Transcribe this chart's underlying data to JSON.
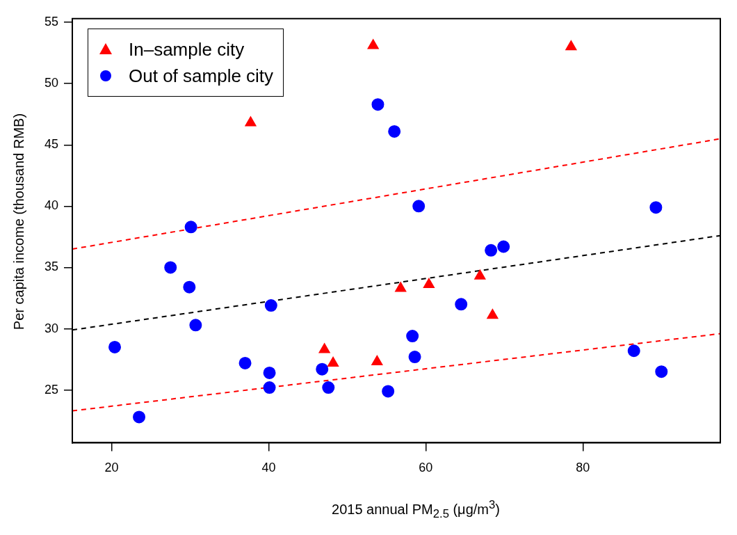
{
  "chart_data": {
    "type": "scatter",
    "xlabel": "2015 annual PM$_{2.5}$ (μg/m$^{3}$)",
    "ylabel": "Per capita income (thousand RMB)",
    "xlim": [
      15,
      97.5
    ],
    "ylim": [
      20.7,
      55.3
    ],
    "xticks": [
      20,
      40,
      60,
      80
    ],
    "yticks": [
      25,
      30,
      35,
      40,
      45,
      50,
      55
    ],
    "grid": false,
    "legend": "top left",
    "series": [
      {
        "name": "In–sample city",
        "color": "#ff0000",
        "marker": "triangle",
        "x": [
          37.7,
          53.3,
          78.5,
          47.1,
          48.2,
          53.8,
          56.8,
          60.4,
          66.9,
          68.5
        ],
        "values": [
          46.8,
          53.1,
          53.0,
          28.3,
          27.2,
          27.3,
          33.3,
          33.6,
          34.3,
          31.1
        ]
      },
      {
        "name": "Out of sample city",
        "color": "#0000ff",
        "marker": "circle",
        "x": [
          53.9,
          56.0,
          59.1,
          89.3,
          30.1,
          27.5,
          29.9,
          40.3,
          30.7,
          20.4,
          37.0,
          40.1,
          40.1,
          46.8,
          47.6,
          55.2,
          23.5,
          69.9,
          68.3,
          64.5,
          58.3,
          58.6,
          86.5,
          90.0
        ],
        "values": [
          48.3,
          46.1,
          40.0,
          39.9,
          38.3,
          35.0,
          33.4,
          31.9,
          30.3,
          28.5,
          27.2,
          26.4,
          25.2,
          26.7,
          25.2,
          24.9,
          22.8,
          36.7,
          36.4,
          32.0,
          29.4,
          27.7,
          28.2,
          26.5
        ]
      },
      {
        "type": "line",
        "color": "#000000",
        "line_style": "dashed",
        "marker": "none",
        "x": [
          15,
          97.5
        ],
        "values": [
          29.9,
          37.6
        ]
      },
      {
        "type": "line",
        "color": "#ff0000",
        "line_style": "dashed",
        "marker": "none",
        "x": [
          15,
          97.5
        ],
        "values": [
          36.5,
          45.5
        ]
      },
      {
        "type": "line",
        "color": "#ff0000",
        "line_style": "dashed",
        "marker": "none",
        "x": [
          15,
          97.5
        ],
        "values": [
          23.3,
          29.6
        ]
      }
    ]
  }
}
